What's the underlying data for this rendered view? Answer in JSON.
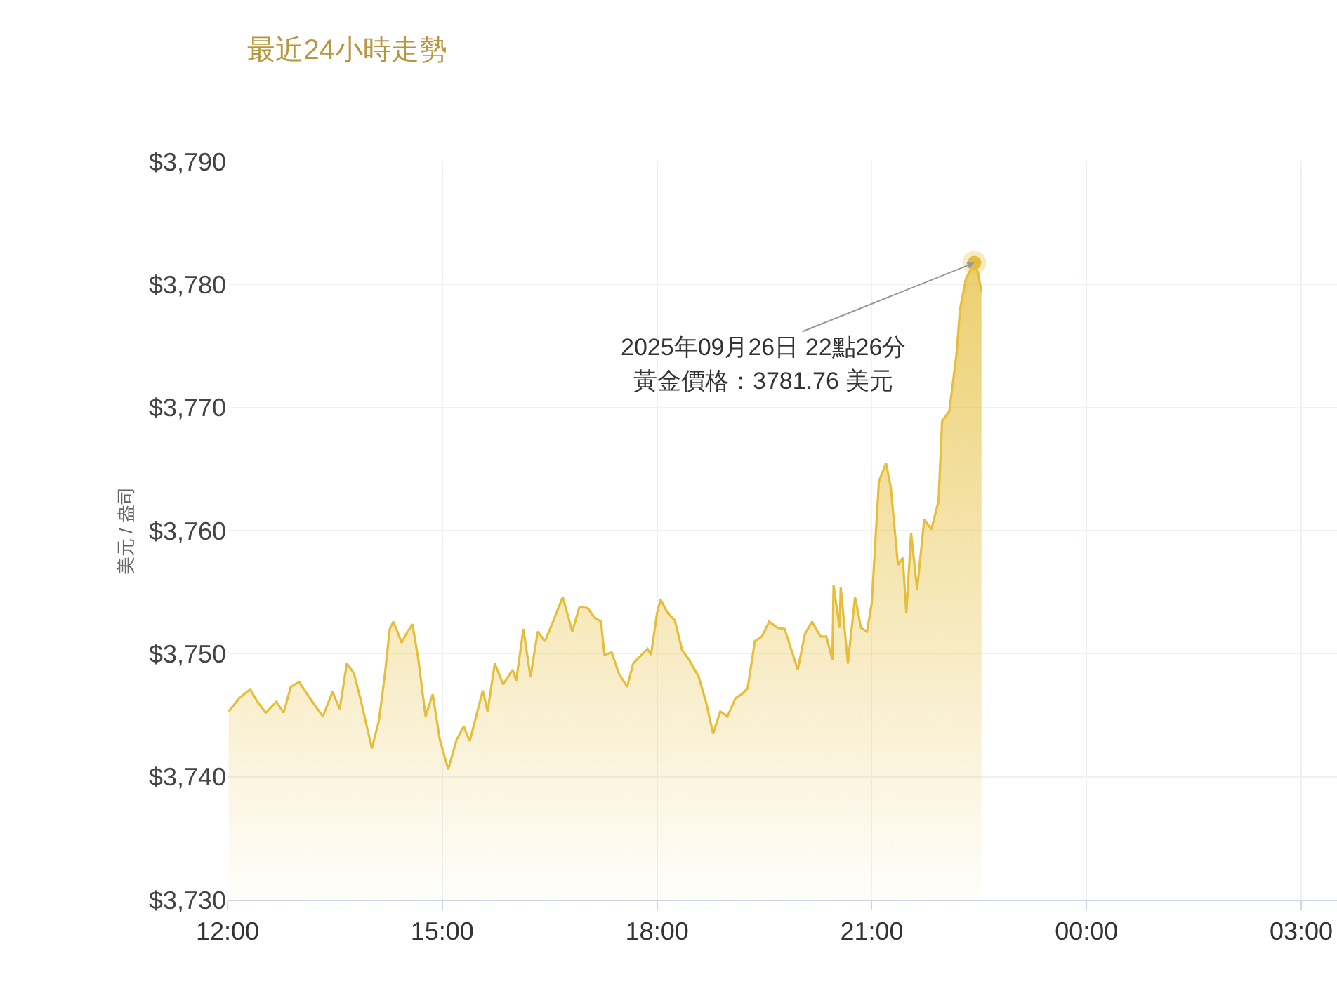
{
  "chart_data": {
    "type": "area",
    "title": "最近24小時走勢",
    "ylabel": "美元 / 盎司",
    "x": [
      "2025-09-26T12:01",
      "2025-09-26T12:10",
      "2025-09-26T12:19",
      "2025-09-26T12:25",
      "2025-09-26T12:32",
      "2025-09-26T12:41",
      "2025-09-26T12:47",
      "2025-09-26T12:53",
      "2025-09-26T13:00",
      "2025-09-26T13:11",
      "2025-09-26T13:20",
      "2025-09-26T13:28",
      "2025-09-26T13:34",
      "2025-09-26T13:40",
      "2025-09-26T13:46",
      "2025-09-26T13:52",
      "2025-09-26T14:01",
      "2025-09-26T14:07",
      "2025-09-26T14:12",
      "2025-09-26T14:16",
      "2025-09-26T14:19",
      "2025-09-26T14:26",
      "2025-09-26T14:31",
      "2025-09-26T14:35",
      "2025-09-26T14:40",
      "2025-09-26T14:46",
      "2025-09-26T14:52",
      "2025-09-26T14:58",
      "2025-09-26T15:05",
      "2025-09-26T15:12",
      "2025-09-26T15:18",
      "2025-09-26T15:23",
      "2025-09-26T15:34",
      "2025-09-26T15:38",
      "2025-09-26T15:44",
      "2025-09-26T15:51",
      "2025-09-26T15:59",
      "2025-09-26T16:02",
      "2025-09-26T16:08",
      "2025-09-26T16:14",
      "2025-09-26T16:20",
      "2025-09-26T16:26",
      "2025-09-26T16:32",
      "2025-09-26T16:41",
      "2025-09-26T16:49",
      "2025-09-26T16:55",
      "2025-09-26T17:02",
      "2025-09-26T17:08",
      "2025-09-26T17:13",
      "2025-09-26T17:16",
      "2025-09-26T17:22",
      "2025-09-26T17:28",
      "2025-09-26T17:35",
      "2025-09-26T17:40",
      "2025-09-26T17:52",
      "2025-09-26T17:55",
      "2025-09-26T18:00",
      "2025-09-26T18:03",
      "2025-09-26T18:09",
      "2025-09-26T18:15",
      "2025-09-26T18:21",
      "2025-09-26T18:27",
      "2025-09-26T18:35",
      "2025-09-26T18:41",
      "2025-09-26T18:47",
      "2025-09-26T18:53",
      "2025-09-26T18:59",
      "2025-09-26T19:06",
      "2025-09-26T19:11",
      "2025-09-26T19:16",
      "2025-09-26T19:22",
      "2025-09-26T19:28",
      "2025-09-26T19:34",
      "2025-09-26T19:41",
      "2025-09-26T19:47",
      "2025-09-26T19:58",
      "2025-09-26T20:04",
      "2025-09-26T20:10",
      "2025-09-26T20:17",
      "2025-09-26T20:22",
      "2025-09-26T20:27",
      "2025-09-26T20:28",
      "2025-09-26T20:33",
      "2025-09-26T20:34",
      "2025-09-26T20:40",
      "2025-09-26T20:46",
      "2025-09-26T20:51",
      "2025-09-26T20:56",
      "2025-09-26T21:00",
      "2025-09-26T21:06",
      "2025-09-26T21:12",
      "2025-09-26T21:16",
      "2025-09-26T21:22",
      "2025-09-26T21:26",
      "2025-09-26T21:29",
      "2025-09-26T21:33",
      "2025-09-26T21:38",
      "2025-09-26T21:44",
      "2025-09-26T21:50",
      "2025-09-26T21:56",
      "2025-09-26T21:59",
      "2025-09-26T22:05",
      "2025-09-26T22:11",
      "2025-09-26T22:14",
      "2025-09-26T22:19",
      "2025-09-26T22:26",
      "2025-09-26T22:29",
      "2025-09-26T22:32"
    ],
    "series": [
      {
        "color": "#e6be3a",
        "values": [
          3745.3,
          3746.4,
          3747.1,
          3746.1,
          3745.2,
          3746.1,
          3745.2,
          3747.3,
          3747.7,
          3746.1,
          3744.9,
          3746.9,
          3745.5,
          3749.2,
          3748.4,
          3746.1,
          3742.3,
          3744.6,
          3748.4,
          3752.0,
          3752.6,
          3750.9,
          3751.8,
          3752.4,
          3749.5,
          3744.9,
          3746.7,
          3743.0,
          3740.6,
          3743.0,
          3744.1,
          3742.9,
          3747.0,
          3745.3,
          3749.2,
          3747.5,
          3748.7,
          3747.8,
          3752.0,
          3748.1,
          3751.8,
          3751.0,
          3752.4,
          3754.6,
          3751.8,
          3753.8,
          3753.7,
          3752.9,
          3752.6,
          3749.9,
          3750.1,
          3748.4,
          3747.3,
          3749.2,
          3750.4,
          3749.9,
          3753.3,
          3754.4,
          3753.3,
          3752.7,
          3750.3,
          3749.5,
          3748.1,
          3746.1,
          3743.5,
          3745.3,
          3744.9,
          3746.4,
          3746.7,
          3747.2,
          3751.0,
          3751.4,
          3752.6,
          3752.1,
          3752.0,
          3748.7,
          3751.6,
          3752.6,
          3751.4,
          3751.4,
          3749.5,
          3755.6,
          3752.1,
          3755.4,
          3749.2,
          3754.6,
          3752.1,
          3751.8,
          3754.1,
          3764.0,
          3765.5,
          3763.5,
          3757.2,
          3757.8,
          3753.3,
          3759.8,
          3755.2,
          3760.9,
          3760.1,
          3762.4,
          3768.9,
          3769.7,
          3774.3,
          3778.0,
          3780.5,
          3781.76,
          3781.0,
          3779.4
        ]
      }
    ],
    "xlim": [
      "2025-09-26T12:00",
      "2025-09-27T03:30"
    ],
    "xticks": [
      {
        "value": "2025-09-26T12:00",
        "label": "12:00"
      },
      {
        "value": "2025-09-26T15:00",
        "label": "15:00"
      },
      {
        "value": "2025-09-26T18:00",
        "label": "18:00"
      },
      {
        "value": "2025-09-26T21:00",
        "label": "21:00"
      },
      {
        "value": "2025-09-27T00:00",
        "label": "00:00"
      },
      {
        "value": "2025-09-27T03:00",
        "label": "03:00"
      }
    ],
    "ylim": [
      3730,
      3790
    ],
    "yticks": [
      {
        "value": 3730,
        "label": "$3,730"
      },
      {
        "value": 3740,
        "label": "$3,740"
      },
      {
        "value": 3750,
        "label": "$3,750"
      },
      {
        "value": 3760,
        "label": "$3,760"
      },
      {
        "value": 3770,
        "label": "$3,770"
      },
      {
        "value": 3780,
        "label": "$3,780"
      },
      {
        "value": 3790,
        "label": "$3,790"
      }
    ],
    "grid": true,
    "annotations": [
      {
        "text": "2025年09月26日 22點26分",
        "x": "2025-09-26T22:26",
        "y": 3781.76
      },
      "黃金價格：3781.76 美元"
    ]
  }
}
